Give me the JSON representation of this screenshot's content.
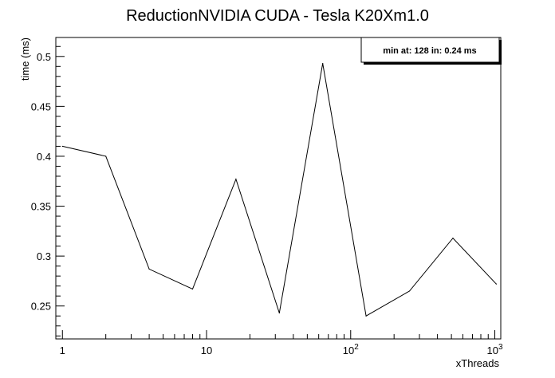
{
  "chart_data": {
    "type": "line",
    "title": "ReductionNVIDIA CUDA - Tesla K20Xm1.0",
    "xlabel": "xThreads",
    "ylabel": "time (ms)",
    "xscale": "log",
    "xlim": [
      0.9,
      1100
    ],
    "ylim": [
      0.217,
      0.519
    ],
    "x": [
      1,
      2,
      4,
      8,
      16,
      32,
      64,
      128,
      256,
      512,
      1024
    ],
    "series": [
      {
        "values": [
          0.41,
          0.4,
          0.287,
          0.267,
          0.377,
          0.243,
          0.493,
          0.24,
          0.265,
          0.318,
          0.272
        ]
      }
    ],
    "x_tick_labels": [
      {
        "value": 1,
        "base": "1",
        "exp": ""
      },
      {
        "value": 10,
        "base": "10",
        "exp": ""
      },
      {
        "value": 100,
        "base": "10",
        "exp": "2"
      },
      {
        "value": 1000,
        "base": "10",
        "exp": "3"
      }
    ],
    "y_tick_labels": [
      {
        "value": 0.25,
        "text": "0.25"
      },
      {
        "value": 0.3,
        "text": "0.3"
      },
      {
        "value": 0.35,
        "text": "0.35"
      },
      {
        "value": 0.4,
        "text": "0.4"
      },
      {
        "value": 0.45,
        "text": "0.45"
      },
      {
        "value": 0.5,
        "text": "0.5"
      }
    ],
    "annotation": "min at: 128 in: 0.24 ms",
    "legend_position": "top-right",
    "grid": false,
    "line_color": "#000000"
  }
}
